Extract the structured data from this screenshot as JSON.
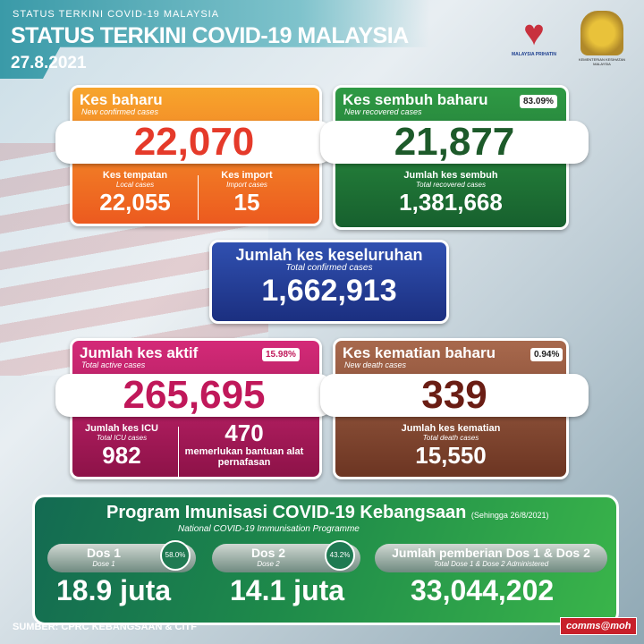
{
  "header": {
    "small_title": "STATUS TERKINI COVID-19 MALAYSIA",
    "title": "STATUS TERKINI COVID-19 MALAYSIA",
    "date": "27.8.2021",
    "logo_left": "MALAYSIA PRIHATIN",
    "logo_right": "KEMENTERIAN KESIHATAN MALAYSIA"
  },
  "new_cases": {
    "title": "Kes baharu",
    "subtitle": "New confirmed cases",
    "value": "22,070",
    "local_label": "Kes tempatan",
    "local_sub": "Local cases",
    "local_value": "22,055",
    "import_label": "Kes import",
    "import_sub": "Import cases",
    "import_value": "15"
  },
  "recovered": {
    "title": "Kes sembuh baharu",
    "subtitle": "New recovered cases",
    "percent": "83.09%",
    "value": "21,877",
    "total_label": "Jumlah kes sembuh",
    "total_sub": "Total recovered cases",
    "total_value": "1,381,668"
  },
  "total": {
    "title": "Jumlah kes keseluruhan",
    "subtitle": "Total confirmed cases",
    "value": "1,662,913"
  },
  "active": {
    "title": "Jumlah kes aktif",
    "subtitle": "Total active cases",
    "percent": "15.98%",
    "value": "265,695",
    "icu_label": "Jumlah kes ICU",
    "icu_sub": "Total ICU cases",
    "icu_value": "982",
    "vent_value": "470",
    "vent_label": "memerlukan bantuan alat pernafasan"
  },
  "deaths": {
    "title": "Kes kematian baharu",
    "subtitle": "New death cases",
    "percent": "0.94%",
    "value": "339",
    "total_label": "Jumlah kes kematian",
    "total_sub": "Total death cases",
    "total_value": "15,550"
  },
  "immunisation": {
    "title": "Program Imunisasi COVID-19 Kebangsaan",
    "as_of": "(Sehingga 26/8/2021)",
    "subtitle": "National COVID-19 Immunisation Programme",
    "dose1_label": "Dos 1",
    "dose1_sub": "Dose 1",
    "dose1_percent": "58.0%",
    "dose1_value": "18.9 juta",
    "dose2_label": "Dos 2",
    "dose2_sub": "Dose 2",
    "dose2_percent": "43.2%",
    "dose2_value": "14.1 juta",
    "total_label": "Jumlah pemberian Dos 1 & Dos 2",
    "total_sub": "Total Dose 1 & Dose 2 Administered",
    "total_value": "33,044,202"
  },
  "footer": {
    "source": "SUMBER: CPRC KEBANGSAAN & CITF",
    "brand": "comms@moh"
  },
  "colors": {
    "new_cases": "#f07a24",
    "recovered": "#1f7f3a",
    "total": "#1f3f9a",
    "active": "#b3185a",
    "deaths": "#8a4a32"
  }
}
